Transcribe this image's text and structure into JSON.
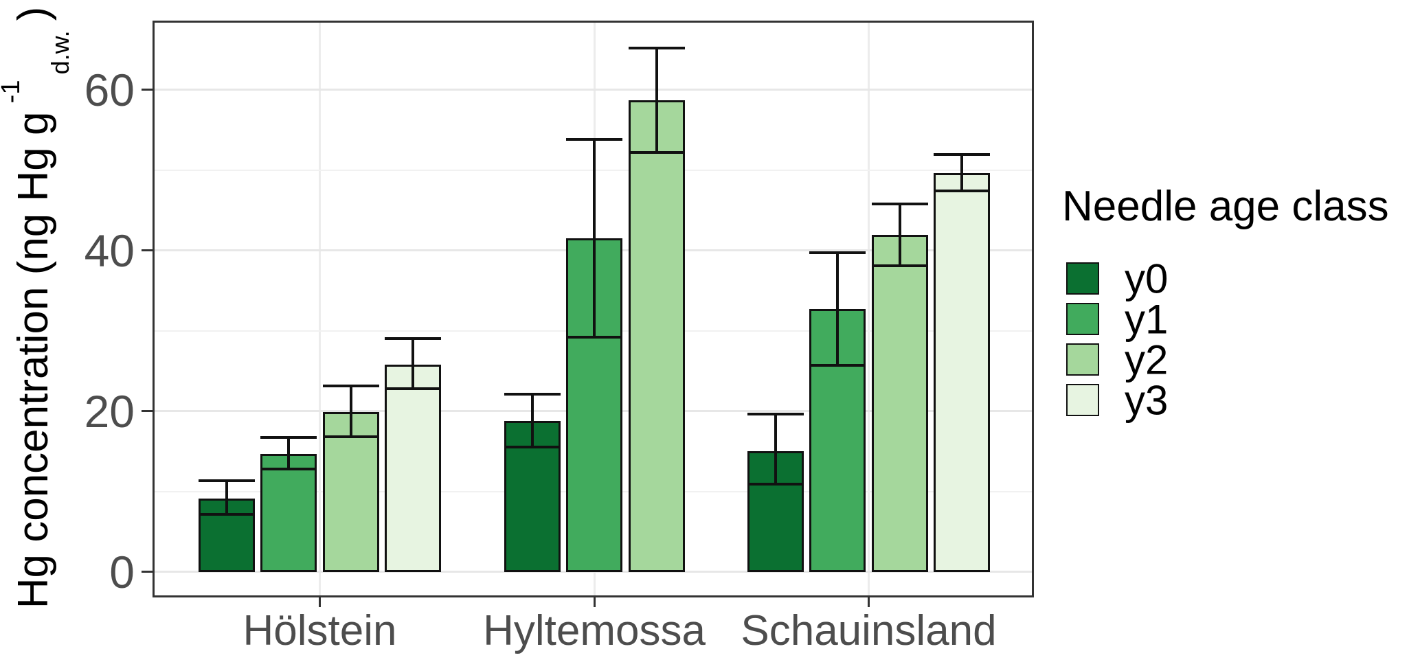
{
  "chart_data": {
    "type": "bar",
    "title": "",
    "xlabel": "",
    "ylabel": "Hg concentration (ng Hg g-1 d.w.)",
    "ylabel_parts": {
      "main": "Hg concentration  (ng Hg g",
      "sup": "-1",
      "sub": "d.w.",
      "close": ")"
    },
    "categories": [
      "Hölstein",
      "Hyltemossa",
      "Schauinsland"
    ],
    "series": [
      {
        "name": "y0",
        "color": "#0b7031",
        "values": [
          9.1,
          18.8,
          15.0
        ],
        "err_low": [
          7.1,
          15.5,
          10.9
        ],
        "err_high": [
          11.3,
          22.1,
          19.6
        ]
      },
      {
        "name": "y1",
        "color": "#41ab5d",
        "values": [
          14.7,
          41.5,
          32.7
        ],
        "err_low": [
          12.8,
          29.2,
          25.7
        ],
        "err_high": [
          16.7,
          53.8,
          39.7
        ]
      },
      {
        "name": "y2",
        "color": "#a5d79c",
        "values": [
          19.9,
          58.7,
          41.9
        ],
        "err_low": [
          16.8,
          52.2,
          38.1
        ],
        "err_high": [
          23.1,
          65.2,
          45.8
        ]
      },
      {
        "name": "y3",
        "color": "#e7f4e1",
        "values": [
          25.8,
          null,
          49.6
        ],
        "err_low": [
          22.8,
          null,
          47.4
        ],
        "err_high": [
          29.0,
          null,
          51.9
        ]
      }
    ],
    "y_ticks": [
      0,
      20,
      40,
      60
    ],
    "y_minor_gridlines": [
      10,
      30,
      50
    ],
    "ylim": [
      -3.2,
      68.6
    ],
    "grid": true,
    "legend": {
      "title": "Needle age class",
      "position": "right",
      "entries": [
        "y0",
        "y1",
        "y2",
        "y3"
      ]
    },
    "style": {
      "bar_outline": "#111111",
      "errorbar_color": "#111111",
      "panel_border": "#333333",
      "tick_label_color": "#4d4d4d",
      "major_grid": "#e7e7e7",
      "minor_grid": "#f1f1f1"
    }
  }
}
